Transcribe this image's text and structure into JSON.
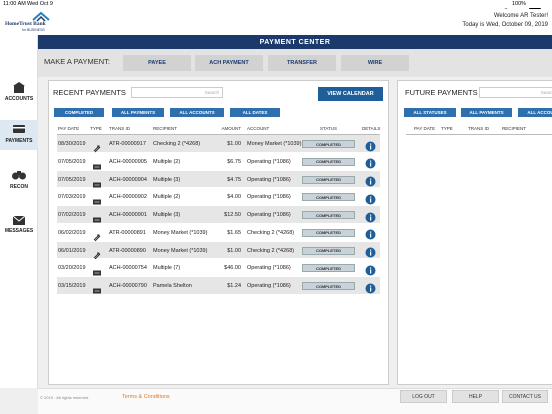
{
  "status_bar": {
    "time": "11:00 AM",
    "date": "Wed Oct 9",
    "battery": "100%"
  },
  "header": {
    "logo_name": "HomeTrust Bank",
    "logo_tagline": "for BUSINESS",
    "welcome": "Welcome AR Tester!",
    "today": "Today is Wed, October 09, 2019"
  },
  "title": "PAYMENT CENTER",
  "make_payment": {
    "label": "MAKE A PAYMENT:",
    "buttons": [
      "PAYEE",
      "ACH PAYMENT",
      "TRANSFER",
      "WIRE"
    ]
  },
  "sidebar": [
    "ACCOUNTS",
    "PAYMENTS",
    "RECON",
    "MESSAGES"
  ],
  "recent": {
    "title": "RECENT PAYMENTS",
    "search": "Search",
    "view_calendar": "VIEW CALENDAR",
    "filters": [
      "COMPLETED",
      "ALL PAYMENTS",
      "ALL ACCOUNTS",
      "ALL DATES"
    ],
    "columns": [
      "PAY DATE",
      "TYPE",
      "TRANS ID",
      "RECIPIENT",
      "AMOUNT",
      "ACCOUNT",
      "STATUS",
      "DETAILS"
    ],
    "rows": [
      [
        "08/30/2019",
        "ATR-00000917",
        "Checking 2 (*4268)",
        "$1.00",
        "Money Market (*1039)",
        "COMPLETED"
      ],
      [
        "07/05/2019",
        "ACH-00000905",
        "Multiple (2)",
        "$6.75",
        "Operating (*1086)",
        "COMPLETED"
      ],
      [
        "07/05/2019",
        "ACH-00000904",
        "Multiple (3)",
        "$4.75",
        "Operating (*1086)",
        "COMPLETED"
      ],
      [
        "07/03/2019",
        "ACH-00000902",
        "Multiple (2)",
        "$4.00",
        "Operating (*1086)",
        "COMPLETED"
      ],
      [
        "07/02/2019",
        "ACH-00000901",
        "Multiple (3)",
        "$12.50",
        "Operating (*1086)",
        "COMPLETED"
      ],
      [
        "06/02/2019",
        "ATR-00000891",
        "Money Market (*1039)",
        "$1.65",
        "Checking 2 (*4268)",
        "COMPLETED"
      ],
      [
        "06/01/2019",
        "ATR-00000890",
        "Money Market (*1039)",
        "$1.00",
        "Checking 2 (*4268)",
        "COMPLETED"
      ],
      [
        "03/20/2019",
        "ACH-00000754",
        "Multiple (7)",
        "$46.00",
        "Operating (*1086)",
        "COMPLETED"
      ],
      [
        "03/15/2019",
        "ACH-00000790",
        "Pamela Shelton",
        "$1.24",
        "Operating (*1086)",
        "COMPLETED"
      ]
    ]
  },
  "future": {
    "title": "FUTURE PAYMENTS",
    "search": "Search",
    "filters": [
      "ALL STATUSES",
      "ALL PAYMENTS",
      "ALL ACCOUNTS"
    ],
    "columns": [
      "PAY DATE",
      "TYPE",
      "TRANS ID",
      "RECIPIENT"
    ]
  },
  "footer": {
    "copyright": "© 2019 - All rights reserved",
    "terms": "Terms & Conditions",
    "buttons": [
      "LOG OUT",
      "HELP",
      "CONTACT US"
    ]
  }
}
